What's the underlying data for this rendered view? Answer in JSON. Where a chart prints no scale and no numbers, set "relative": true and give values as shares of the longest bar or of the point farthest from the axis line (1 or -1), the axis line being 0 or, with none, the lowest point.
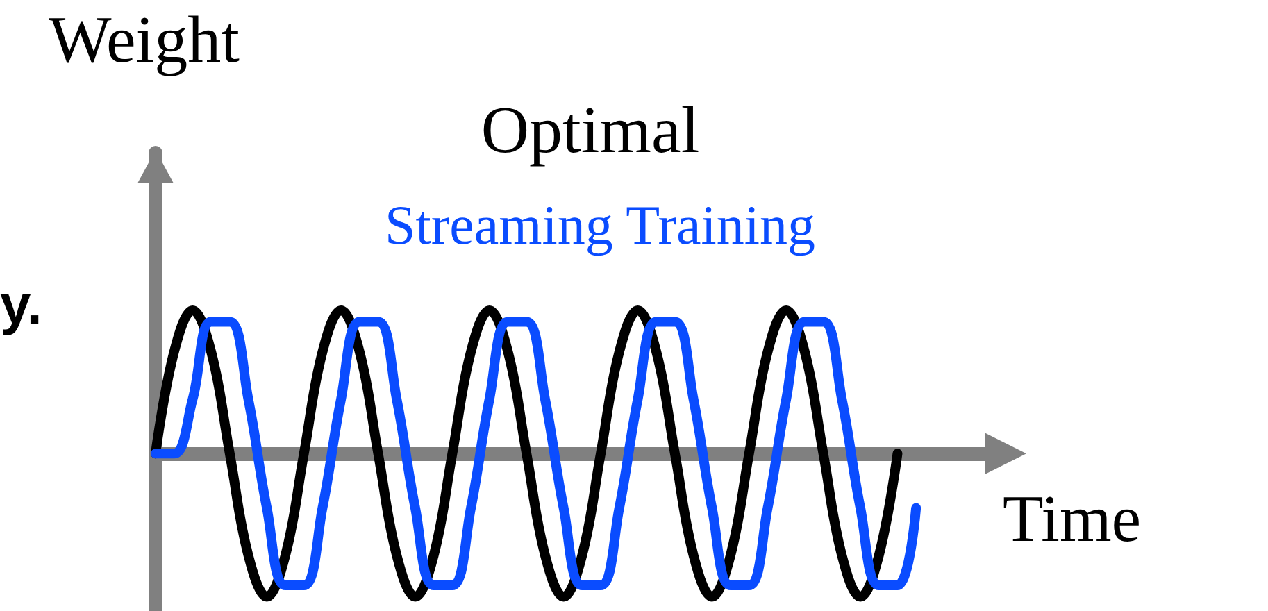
{
  "chart_data": {
    "type": "line",
    "relative": true,
    "xlabel": "Time",
    "ylabel": "Weight",
    "annotations": [
      "y."
    ],
    "marker": "none",
    "line_style": "solid",
    "categories": [
      null,
      null,
      null,
      null,
      null,
      null,
      null,
      null,
      null,
      null,
      null,
      null,
      null,
      null,
      null,
      null,
      null,
      null,
      null,
      null,
      null,
      null,
      null,
      null,
      null,
      null,
      null,
      null,
      null,
      null,
      null,
      null,
      null,
      null,
      null,
      null,
      null,
      null,
      null,
      null,
      null,
      null,
      null,
      null,
      null,
      null
    ],
    "series": [
      {
        "name": "Optimal",
        "color": "#000000",
        "values": [
          0,
          0.71,
          1,
          0.71,
          0,
          -0.71,
          -1,
          -0.71,
          0,
          0.71,
          1,
          0.71,
          0,
          -0.71,
          -1,
          -0.71,
          0,
          0.71,
          1,
          0.71,
          0,
          -0.71,
          -1,
          -0.71,
          0,
          0.71,
          1,
          0.71,
          0,
          -0.71,
          -1,
          -0.71,
          0,
          0.71,
          1,
          0.71,
          0,
          -0.71,
          -1,
          -0.71,
          0,
          null,
          null,
          null,
          null,
          null
        ]
      },
      {
        "name": "Streaming Training",
        "color": "#0a4cff",
        "values": [
          0,
          0,
          0.38,
          0.92,
          0.92,
          0.38,
          -0.38,
          -0.92,
          -0.92,
          -0.38,
          0.38,
          0.92,
          0.92,
          0.38,
          -0.38,
          -0.92,
          -0.92,
          -0.38,
          0.38,
          0.92,
          0.92,
          0.38,
          -0.38,
          -0.92,
          -0.92,
          -0.38,
          0.38,
          0.92,
          0.92,
          0.38,
          -0.38,
          -0.92,
          -0.92,
          -0.38,
          0.38,
          0.92,
          0.92,
          0.38,
          -0.38,
          -0.92,
          -0.92,
          -0.38,
          null,
          null,
          null,
          null
        ]
      }
    ]
  }
}
